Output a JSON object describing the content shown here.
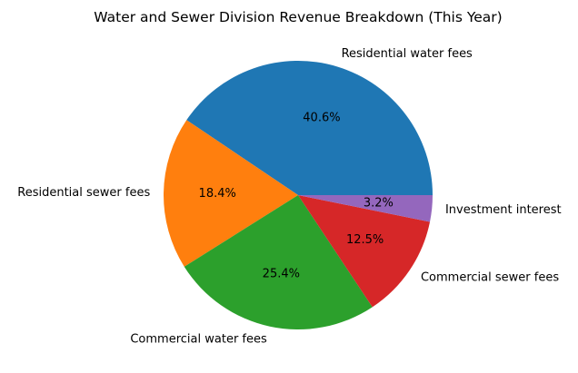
{
  "chart_data": {
    "type": "pie",
    "title": "Water and Sewer Division Revenue Breakdown (This Year)",
    "slices": [
      {
        "label": "Residential water fees",
        "value": 40.6,
        "pct_label": "40.6%",
        "color": "#1f77b4"
      },
      {
        "label": "Residential sewer fees",
        "value": 18.4,
        "pct_label": "18.4%",
        "color": "#ff7f0e"
      },
      {
        "label": "Commercial water fees",
        "value": 25.4,
        "pct_label": "25.4%",
        "color": "#2ca02c"
      },
      {
        "label": "Commercial sewer fees",
        "value": 12.5,
        "pct_label": "12.5%",
        "color": "#d62728"
      },
      {
        "label": "Investment interest",
        "value": 3.2,
        "pct_label": "3.2%",
        "color": "#9467bd"
      }
    ],
    "start_angle_deg": 0,
    "direction": "counterclockwise"
  }
}
